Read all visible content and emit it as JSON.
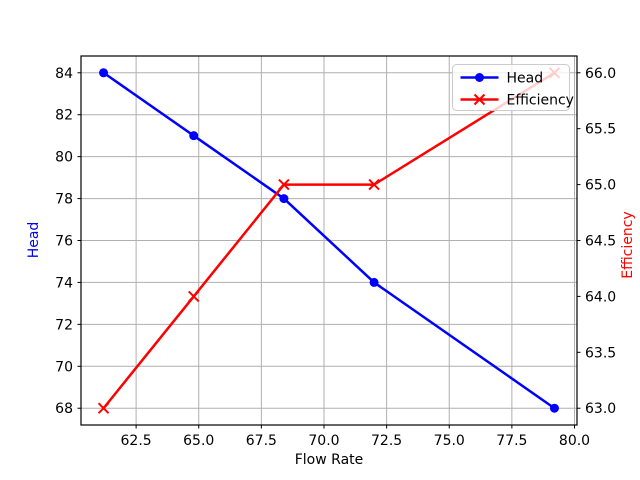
{
  "chart_data": {
    "type": "line",
    "title": "",
    "xlabel": "Flow Rate",
    "ylabel_left": "Head",
    "ylabel_right": "Efficiency",
    "x": [
      61.2,
      64.8,
      68.4,
      72.0,
      79.2
    ],
    "series": [
      {
        "name": "Head",
        "axis": "left",
        "color": "#0000ff",
        "marker": "circle",
        "values": [
          84,
          81,
          78,
          74,
          68
        ]
      },
      {
        "name": "Efficiency",
        "axis": "right",
        "color": "#ff0000",
        "marker": "x",
        "values": [
          63,
          64,
          65,
          65,
          66
        ]
      }
    ],
    "xlim": [
      60.3,
      80.1
    ],
    "ylim_left": [
      67.2,
      84.8
    ],
    "ylim_right": [
      62.85,
      66.15
    ],
    "xticks": [
      62.5,
      65.0,
      67.5,
      70.0,
      72.5,
      75.0,
      77.5,
      80.0
    ],
    "xtick_labels": [
      "62.5",
      "65.0",
      "67.5",
      "70.0",
      "72.5",
      "75.0",
      "77.5",
      "80.0"
    ],
    "yticks_left": [
      68,
      70,
      72,
      74,
      76,
      78,
      80,
      82,
      84
    ],
    "ytick_left_labels": [
      "68",
      "70",
      "72",
      "74",
      "76",
      "78",
      "80",
      "82",
      "84"
    ],
    "yticks_right": [
      63.0,
      63.5,
      64.0,
      64.5,
      65.0,
      65.5,
      66.0
    ],
    "ytick_right_labels": [
      "63.0",
      "63.5",
      "64.0",
      "64.5",
      "65.0",
      "65.5",
      "66.0"
    ],
    "grid": true,
    "legend": {
      "position": "upper right",
      "entries": [
        "Head",
        "Efficiency"
      ]
    },
    "colors": {
      "head_line": "#0000ff",
      "efficiency_line": "#ff0000",
      "left_axis_label": "#0000ff",
      "right_axis_label": "#ff0000",
      "tick_label": "#000000",
      "spine": "#000000",
      "grid": "#b0b0b0",
      "legend_border": "#cccccc",
      "background": "#ffffff"
    }
  }
}
